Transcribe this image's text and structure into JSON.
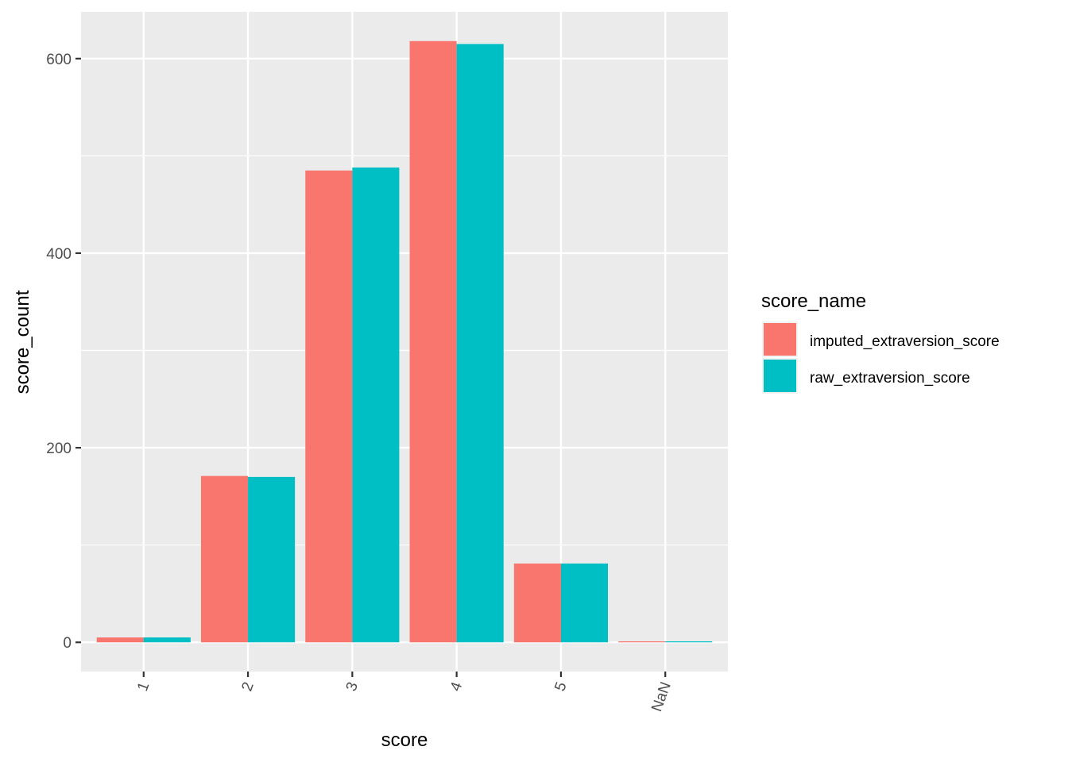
{
  "chart_data": {
    "type": "bar",
    "xlabel": "score",
    "ylabel": "score_count",
    "categories": [
      "1",
      "2",
      "3",
      "4",
      "5",
      "NaN"
    ],
    "series": [
      {
        "name": "imputed_extraversion_score",
        "color": "#F8766D",
        "values": [
          5,
          171,
          485,
          618,
          81,
          1
        ]
      },
      {
        "name": "raw_extraversion_score",
        "color": "#00BFC4",
        "values": [
          5,
          170,
          488,
          615,
          81,
          1
        ]
      }
    ],
    "ylim": [
      -30,
      648
    ],
    "y_ticks": [
      0,
      200,
      400,
      600
    ],
    "y_tick_labels": [
      "0",
      "200",
      "400",
      "600"
    ],
    "grid": true,
    "legend": {
      "title": "score_name",
      "position": "right"
    },
    "panel_background": "#EBEBEB"
  }
}
